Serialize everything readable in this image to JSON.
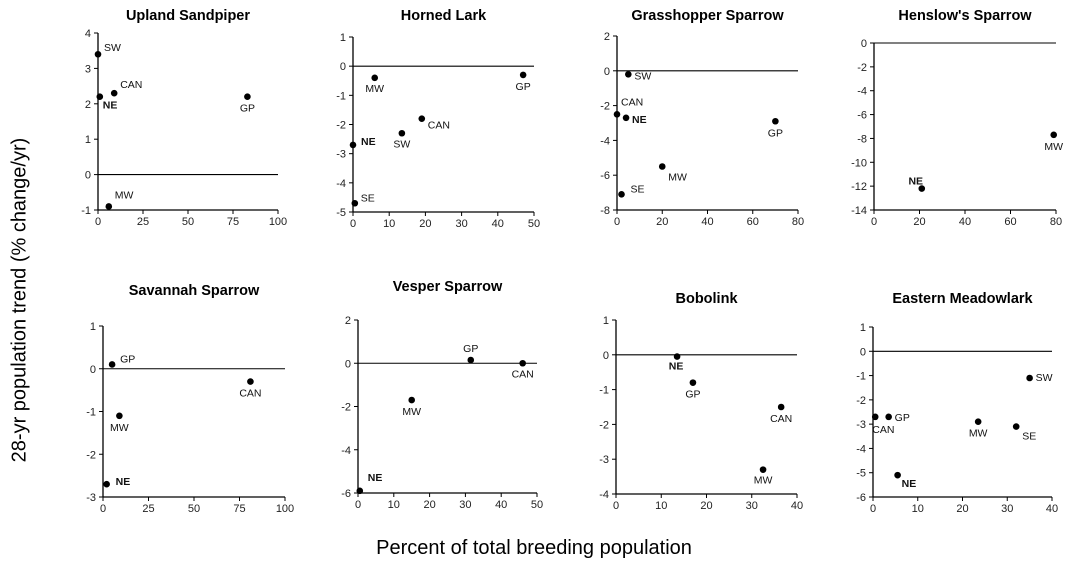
{
  "ylabel": "28-yr population trend (% change/yr)",
  "xlabel": "Percent of total breeding population",
  "chart_data": [
    {
      "type": "scatter",
      "title": "Upland Sandpiper",
      "xlim": [
        0,
        100
      ],
      "ylim": [
        -1,
        4
      ],
      "xticks": [
        "0",
        "25",
        "50",
        "75",
        "100"
      ],
      "yticks": [
        "4",
        "3",
        "2",
        "1",
        "0",
        "-1"
      ],
      "points": [
        {
          "label": "SW",
          "x": 0,
          "y": 3.4
        },
        {
          "label": "NE",
          "x": 1,
          "y": 2.2
        },
        {
          "label": "CAN",
          "x": 9,
          "y": 2.3
        },
        {
          "label": "GP",
          "x": 83,
          "y": 2.2
        },
        {
          "label": "MW",
          "x": 6,
          "y": -0.9
        }
      ]
    },
    {
      "type": "scatter",
      "title": "Horned Lark",
      "xlim": [
        0,
        50
      ],
      "ylim": [
        -5,
        1
      ],
      "xticks": [
        "0",
        "10",
        "20",
        "30",
        "40",
        "50"
      ],
      "yticks": [
        "1",
        "0",
        "-1",
        "-2",
        "-3",
        "-4",
        "-5"
      ],
      "points": [
        {
          "label": "MW",
          "x": 6,
          "y": -0.4
        },
        {
          "label": "GP",
          "x": 47,
          "y": -0.3
        },
        {
          "label": "CAN",
          "x": 19,
          "y": -1.8
        },
        {
          "label": "SW",
          "x": 13.5,
          "y": -2.3
        },
        {
          "label": "NE",
          "x": 0,
          "y": -2.7
        },
        {
          "label": "SE",
          "x": 0.5,
          "y": -4.7
        }
      ]
    },
    {
      "type": "scatter",
      "title": "Grasshopper Sparrow",
      "xlim": [
        0,
        80
      ],
      "ylim": [
        -8,
        2
      ],
      "xticks": [
        "0",
        "20",
        "40",
        "60",
        "80"
      ],
      "yticks": [
        "2",
        "0",
        "-2",
        "-4",
        "-6",
        "-8"
      ],
      "points": [
        {
          "label": "SW",
          "x": 5,
          "y": -0.2
        },
        {
          "label": "CAN",
          "x": 0,
          "y": -2.5
        },
        {
          "label": "NE",
          "x": 4,
          "y": -2.7
        },
        {
          "label": "GP",
          "x": 70,
          "y": -2.9
        },
        {
          "label": "MW",
          "x": 20,
          "y": -5.5
        },
        {
          "label": "SE",
          "x": 2,
          "y": -7.1
        }
      ]
    },
    {
      "type": "scatter",
      "title": "Henslow's Sparrow",
      "xlim": [
        0,
        80
      ],
      "ylim": [
        -14,
        0
      ],
      "xticks": [
        "0",
        "20",
        "40",
        "60",
        "80"
      ],
      "yticks": [
        "0",
        "-2",
        "-4",
        "-6",
        "-8",
        "-10",
        "-12",
        "-14"
      ],
      "points": [
        {
          "label": "MW",
          "x": 79,
          "y": -7.7
        },
        {
          "label": "NE",
          "x": 21,
          "y": -12.2
        }
      ]
    },
    {
      "type": "scatter",
      "title": "Savannah Sparrow",
      "xlim": [
        0,
        100
      ],
      "ylim": [
        -3,
        1
      ],
      "xticks": [
        "0",
        "25",
        "50",
        "75",
        "100"
      ],
      "yticks": [
        "1",
        "0",
        "-1",
        "-2",
        "-3"
      ],
      "points": [
        {
          "label": "GP",
          "x": 5,
          "y": 0.1
        },
        {
          "label": "CAN",
          "x": 81,
          "y": -0.3
        },
        {
          "label": "MW",
          "x": 9,
          "y": -1.1
        },
        {
          "label": "NE",
          "x": 2,
          "y": -2.7
        }
      ]
    },
    {
      "type": "scatter",
      "title": "Vesper Sparrow",
      "xlim": [
        0,
        50
      ],
      "ylim": [
        -6,
        2
      ],
      "xticks": [
        "0",
        "10",
        "20",
        "30",
        "40",
        "50"
      ],
      "yticks": [
        "2",
        "0",
        "-2",
        "-4",
        "-6"
      ],
      "points": [
        {
          "label": "GP",
          "x": 31.5,
          "y": 0.15
        },
        {
          "label": "CAN",
          "x": 46,
          "y": 0
        },
        {
          "label": "MW",
          "x": 15,
          "y": -1.7
        },
        {
          "label": "NE",
          "x": 0.5,
          "y": -5.9
        }
      ]
    },
    {
      "type": "scatter",
      "title": "Bobolink",
      "xlim": [
        0,
        40
      ],
      "ylim": [
        -4,
        1
      ],
      "xticks": [
        "0",
        "10",
        "20",
        "30",
        "40"
      ],
      "yticks": [
        "1",
        "0",
        "-1",
        "-2",
        "-3",
        "-4"
      ],
      "points": [
        {
          "label": "NE",
          "x": 13.5,
          "y": -0.05
        },
        {
          "label": "GP",
          "x": 17,
          "y": -0.8
        },
        {
          "label": "CAN",
          "x": 36.5,
          "y": -1.5
        },
        {
          "label": "MW",
          "x": 32.5,
          "y": -3.3
        }
      ]
    },
    {
      "type": "scatter",
      "title": "Eastern Meadowlark",
      "xlim": [
        0,
        40
      ],
      "ylim": [
        -6,
        1
      ],
      "xticks": [
        "0",
        "10",
        "20",
        "30",
        "40"
      ],
      "yticks": [
        "1",
        "0",
        "-1",
        "-2",
        "-3",
        "-4",
        "-5",
        "-6"
      ],
      "points": [
        {
          "label": "SW",
          "x": 35,
          "y": -1.1
        },
        {
          "label": "CAN",
          "x": 0.5,
          "y": -2.7
        },
        {
          "label": "GP",
          "x": 3.5,
          "y": -2.7
        },
        {
          "label": "MW",
          "x": 23.5,
          "y": -2.9
        },
        {
          "label": "SE",
          "x": 32,
          "y": -3.1
        },
        {
          "label": "NE",
          "x": 5.5,
          "y": -5.1
        }
      ]
    }
  ]
}
